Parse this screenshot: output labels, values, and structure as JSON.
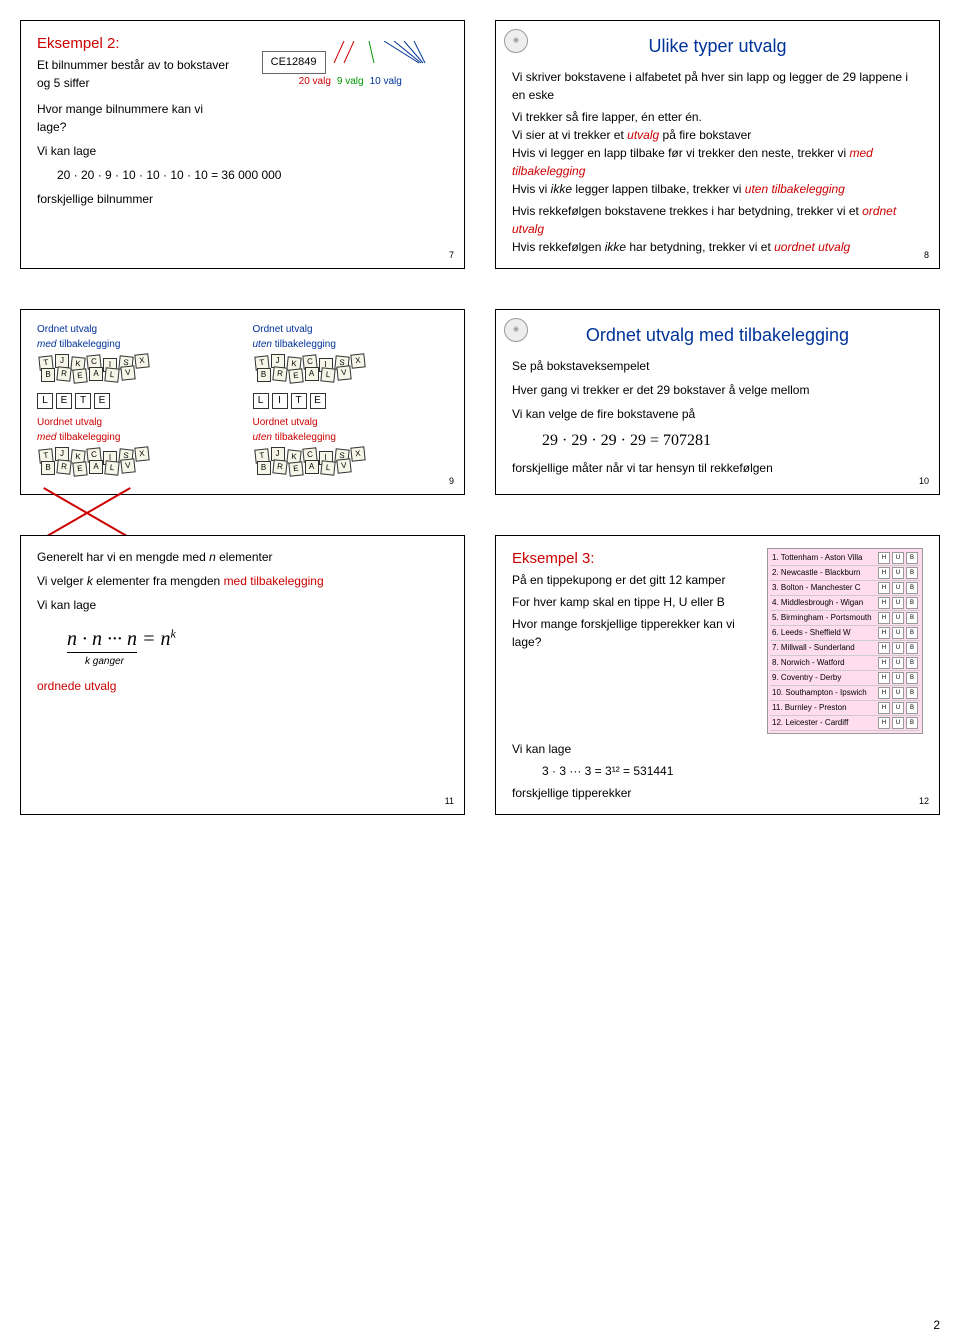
{
  "slide7": {
    "title": "Eksempel 2:",
    "line1": "Et bilnummer består av to bokstaver og 5 siffer",
    "line2": "Hvor mange bilnummere kan vi lage?",
    "line3": "Vi kan lage",
    "formula": "20 · 20 · 9 · 10 · 10 · 10 · 10 = 36 000 000",
    "line4": "forskjellige bilnummer",
    "ce_code": "CE12849",
    "valg20": "20 valg",
    "valg9": "9 valg",
    "valg10": "10 valg",
    "num": "7"
  },
  "slide8": {
    "title": "Ulike typer utvalg",
    "p1": "Vi skriver bokstavene i alfabetet på hver sin lapp og legger de 29 lappene i en eske",
    "p2": "Vi trekker så fire lapper, én etter én.",
    "p3a": "Vi sier at vi trekker et ",
    "p3b": "utvalg",
    "p3c": " på fire bokstaver",
    "p4a": "Hvis vi legger en lapp tilbake før vi trekker den neste, trekker vi ",
    "p4b": "med tilbakelegging",
    "p5a": "Hvis vi ",
    "p5b": "ikke",
    "p5c": " legger lappen tilbake, trekker vi ",
    "p5d": "uten tilbakelegging",
    "p6a": "Hvis rekkefølgen bokstavene trekkes i har betydning, trekker vi et ",
    "p6b": "ordnet utvalg",
    "p7a": "Hvis rekkefølgen ",
    "p7b": "ikke",
    "p7c": " har betydning, trekker vi et ",
    "p7d": "uordnet utvalg",
    "num": "8"
  },
  "slide9": {
    "h1a": "Ordnet utvalg",
    "h1b": "med",
    "h1c": " tilbakelegging",
    "h2a": "Ordnet utvalg",
    "h2b": "uten",
    "h2c": " tilbakelegging",
    "h3a": "Uordnet utvalg",
    "h3b": "med",
    "h3c": " tilbakelegging",
    "h4a": "Uordnet utvalg",
    "h4b": "uten",
    "h4c": " tilbakelegging",
    "lete": [
      "L",
      "E",
      "T",
      "E"
    ],
    "lite": [
      "L",
      "I",
      "T",
      "E"
    ],
    "scatter": [
      "T",
      "J",
      "K",
      "C",
      "I",
      "S",
      "X",
      "B",
      "R",
      "E",
      "A",
      "L",
      "V"
    ],
    "num": "9"
  },
  "slide10": {
    "title": "Ordnet utvalg med tilbakelegging",
    "p1": "Se på bokstaveksempelet",
    "p2": "Hver gang vi trekker er det 29 bokstaver å velge mellom",
    "p3": "Vi kan velge de fire bokstavene på",
    "formula": "29 · 29 · 29 · 29 = 707281",
    "p4": "forskjellige måter når vi tar hensyn til rekkefølgen",
    "num": "10"
  },
  "slide11": {
    "p1a": "Generelt har vi en mengde med ",
    "p1b": "n",
    "p1c": " elementer",
    "p2a": "Vi velger ",
    "p2b": "k",
    "p2c": " elementer fra mengden ",
    "p2d": "med tilbakelegging",
    "p3": "Vi kan lage",
    "f_left": "n · n ··· n",
    "f_brace": "k ganger",
    "f_eq": " = n",
    "f_exp": "k",
    "p4": "ordnede utvalg",
    "num": "11"
  },
  "slide12": {
    "title": "Eksempel 3:",
    "p1": "På en tippekupong er det gitt 12 kamper",
    "p2": "For hver kamp skal en tippe H, U eller B",
    "p3": "Hvor mange forskjellige tipperekker kan vi lage?",
    "p4": "Vi kan lage",
    "formula": "3 · 3 ··· 3 = 3¹² = 531441",
    "p5": "forskjellige tipperekker",
    "matches": [
      "1. Tottenham - Aston Villa",
      "2. Newcastle - Blackburn",
      "3. Bolton - Manchester C",
      "4. Middlesbrough - Wigan",
      "5. Birmingham - Portsmouth",
      "6. Leeds - Sheffield W",
      "7. Millwall - Sunderland",
      "8. Norwich - Watford",
      "9. Coventry - Derby",
      "10. Southampton - Ipswich",
      "11. Burnley - Preston",
      "12. Leicester - Cardiff"
    ],
    "hub": [
      "H",
      "U",
      "B"
    ],
    "num": "12"
  },
  "page_number": "2"
}
